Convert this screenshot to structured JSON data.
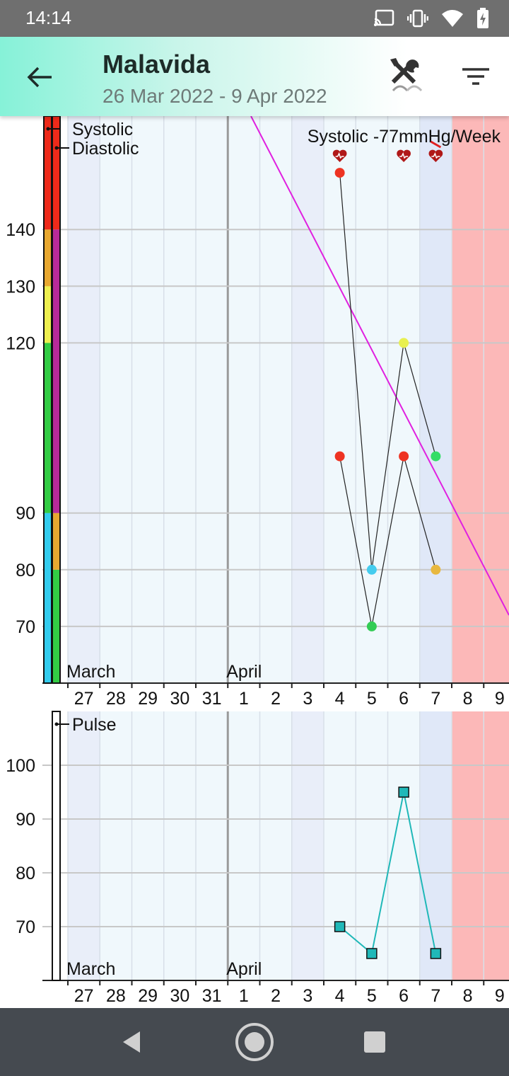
{
  "status_bar": {
    "time": "14:14",
    "icons": [
      "cast-icon",
      "vibrate-icon",
      "wifi-icon",
      "battery-charging-icon"
    ]
  },
  "app_bar": {
    "title": "Malavida",
    "subtitle": "26 Mar 2022 - 9 Apr 2022",
    "icons": [
      "back-arrow-icon",
      "tools-icon",
      "filter-icon"
    ]
  },
  "nav_bar": {
    "icons": [
      "back-triangle-icon",
      "home-circle-icon",
      "recents-square-icon"
    ]
  },
  "colors": {
    "systolic_line": "#222222",
    "pulse_line": "#20b8b8",
    "trend": "#e020e0",
    "weekend_band": "#e0e8f8",
    "future_band": "#fcb8b8",
    "plot_bg": "#f0f8fc"
  },
  "chart_data": [
    {
      "type": "line",
      "x_ticks": [
        "27",
        "28",
        "29",
        "30",
        "31",
        "1",
        "2",
        "3",
        "4",
        "5",
        "6",
        "7",
        "8",
        "9"
      ],
      "month_labels": [
        {
          "text": "March",
          "at": "27"
        },
        {
          "text": "April",
          "at": "1"
        }
      ],
      "y_ticks": [
        70,
        80,
        90,
        120,
        130,
        140
      ],
      "ylim": [
        60,
        160
      ],
      "legend": [
        "Systolic",
        "Diastolic"
      ],
      "legend_position": "top-left",
      "annotation": "Systolic -77mmHg/Week",
      "series": [
        {
          "name": "Systolic",
          "x": [
            "4",
            "5",
            "6",
            "7"
          ],
          "values": [
            150,
            80,
            120,
            100
          ],
          "point_colors": [
            "#ee3322",
            "#44ccee",
            "#e8f050",
            "#33dd66"
          ]
        },
        {
          "name": "Diastolic",
          "x": [
            "4",
            "5",
            "6",
            "7"
          ],
          "values": [
            100,
            70,
            100,
            80
          ],
          "point_colors": [
            "#ee3322",
            "#33cc55",
            "#ee3322",
            "#e8b840"
          ]
        }
      ],
      "heart_markers": [
        "4",
        "6",
        "7"
      ],
      "systolic_color_bands": [
        {
          "from": 60,
          "to": 90,
          "color": "#33ccee"
        },
        {
          "from": 90,
          "to": 120,
          "color": "#33cc44"
        },
        {
          "from": 120,
          "to": 130,
          "color": "#eef050"
        },
        {
          "from": 130,
          "to": 140,
          "color": "#e8a830"
        },
        {
          "from": 140,
          "to": 160,
          "color": "#ee2a1a"
        }
      ],
      "diastolic_color_bands": [
        {
          "from": 60,
          "to": 80,
          "color": "#33cc44"
        },
        {
          "from": 80,
          "to": 90,
          "color": "#e8a830"
        },
        {
          "from": 90,
          "to": 140,
          "color": "#b82a9a"
        },
        {
          "from": 140,
          "to": 160,
          "color": "#ee2a1a"
        }
      ]
    },
    {
      "type": "line",
      "x_ticks": [
        "27",
        "28",
        "29",
        "30",
        "31",
        "1",
        "2",
        "3",
        "4",
        "5",
        "6",
        "7",
        "8",
        "9"
      ],
      "month_labels": [
        {
          "text": "March",
          "at": "27"
        },
        {
          "text": "April",
          "at": "1"
        }
      ],
      "y_ticks": [
        70,
        80,
        90,
        100
      ],
      "ylim": [
        60,
        110
      ],
      "legend": [
        "Pulse"
      ],
      "legend_position": "top-left",
      "series": [
        {
          "name": "Pulse",
          "x": [
            "4",
            "5",
            "6",
            "7"
          ],
          "values": [
            70,
            65,
            95,
            65
          ]
        }
      ]
    }
  ]
}
